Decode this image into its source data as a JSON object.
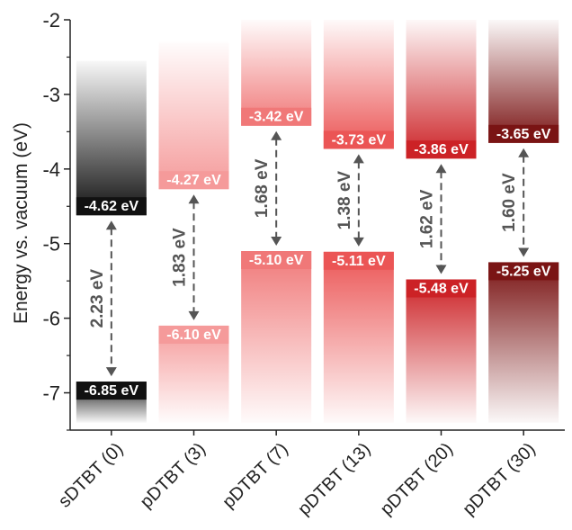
{
  "chart_data": {
    "type": "bar",
    "title": "",
    "ylabel": "Energy vs. vacuum (eV)",
    "xlabel": "",
    "ylim": [
      -7.5,
      -2
    ],
    "yticks": [
      -7,
      -6,
      -5,
      -4,
      -3,
      -2
    ],
    "ytick_labels": [
      "-7",
      "-6",
      "-5",
      "-4",
      "-3",
      "-2"
    ],
    "grid": false,
    "categories": [
      "sDTBT (0)",
      "pDTBT (3)",
      "pDTBT (7)",
      "pDTBT (13)",
      "pDTBT (20)",
      "pDTBT (30)"
    ],
    "lumo": [
      -4.62,
      -4.27,
      -3.42,
      -3.73,
      -3.86,
      -3.65
    ],
    "homo": [
      -6.85,
      -6.1,
      -5.1,
      -5.11,
      -5.48,
      -5.25
    ],
    "lumo_labels": [
      "-4.62 eV",
      "-4.27 eV",
      "-3.42 eV",
      "-3.73 eV",
      "-3.86 eV",
      "-3.65 eV"
    ],
    "homo_labels": [
      "-6.85 eV",
      "-6.10 eV",
      "-5.10 eV",
      "-5.11 eV",
      "-5.48 eV",
      "-5.25 eV"
    ],
    "gaps": [
      2.23,
      1.83,
      1.68,
      1.38,
      1.62,
      1.6
    ],
    "gap_labels": [
      "2.23 eV",
      "1.83 eV",
      "1.68 eV",
      "1.38 eV",
      "1.62 eV",
      "1.60 eV"
    ],
    "colors": [
      "#111111",
      "#f59a9a",
      "#f07878",
      "#eb5555",
      "#cc2226",
      "#7a1414"
    ],
    "label_colors": [
      "#ffffff",
      "#ffffff",
      "#ffffff",
      "#ffffff",
      "#ffffff",
      "#ffffff"
    ]
  }
}
